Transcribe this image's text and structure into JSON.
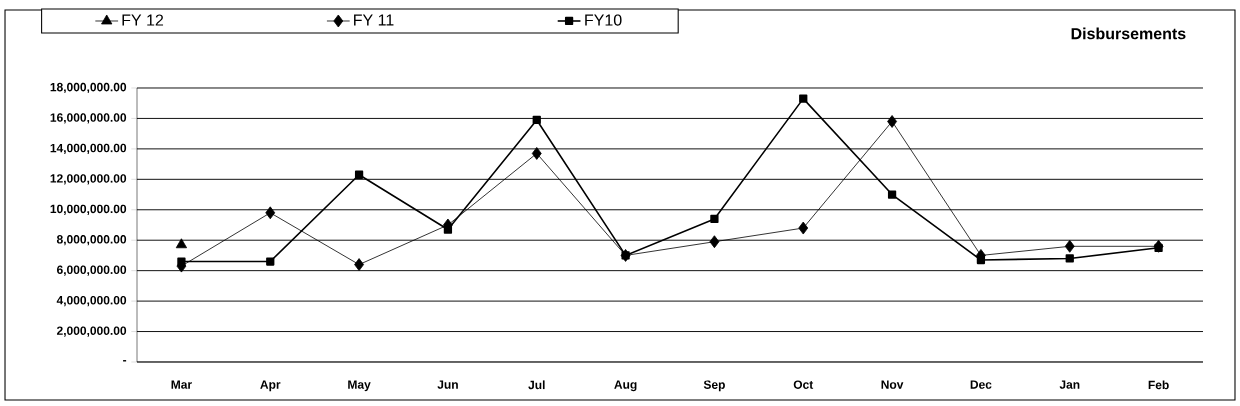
{
  "chart_data": {
    "type": "line",
    "title": "Disbursements",
    "categories": [
      "Mar",
      "Apr",
      "May",
      "Jun",
      "Jul",
      "Aug",
      "Sep",
      "Oct",
      "Nov",
      "Dec",
      "Jan",
      "Feb"
    ],
    "series": [
      {
        "name": "FY 12",
        "color": "#000000",
        "marker": "triangle",
        "values": [
          7700000,
          null,
          null,
          null,
          null,
          null,
          null,
          null,
          null,
          null,
          null,
          null
        ]
      },
      {
        "name": "FY 11",
        "color": "#000000",
        "marker": "diamond",
        "values": [
          6300000,
          9800000,
          6400000,
          9000000,
          13700000,
          7000000,
          7900000,
          8800000,
          15800000,
          7000000,
          7600000,
          7600000
        ]
      },
      {
        "name": "FY10",
        "color": "#000000",
        "marker": "square",
        "values": [
          6600000,
          6600000,
          12300000,
          8700000,
          15900000,
          7000000,
          9400000,
          17300000,
          11000000,
          6700000,
          6800000,
          7500000
        ]
      }
    ],
    "ylim": [
      0,
      18000000
    ],
    "yticks": [
      {
        "value": 0,
        "label": "-"
      },
      {
        "value": 2000000,
        "label": "2,000,000.00"
      },
      {
        "value": 4000000,
        "label": "4,000,000.00"
      },
      {
        "value": 6000000,
        "label": "6,000,000.00"
      },
      {
        "value": 8000000,
        "label": "8,000,000.00"
      },
      {
        "value": 10000000,
        "label": "10,000,000.00"
      },
      {
        "value": 12000000,
        "label": "12,000,000.00"
      },
      {
        "value": 14000000,
        "label": "14,000,000.00"
      },
      {
        "value": 16000000,
        "label": "16,000,000.00"
      },
      {
        "value": 18000000,
        "label": "18,000,000.00"
      }
    ],
    "grid": "y",
    "legend": "top",
    "line_style": "solid"
  }
}
